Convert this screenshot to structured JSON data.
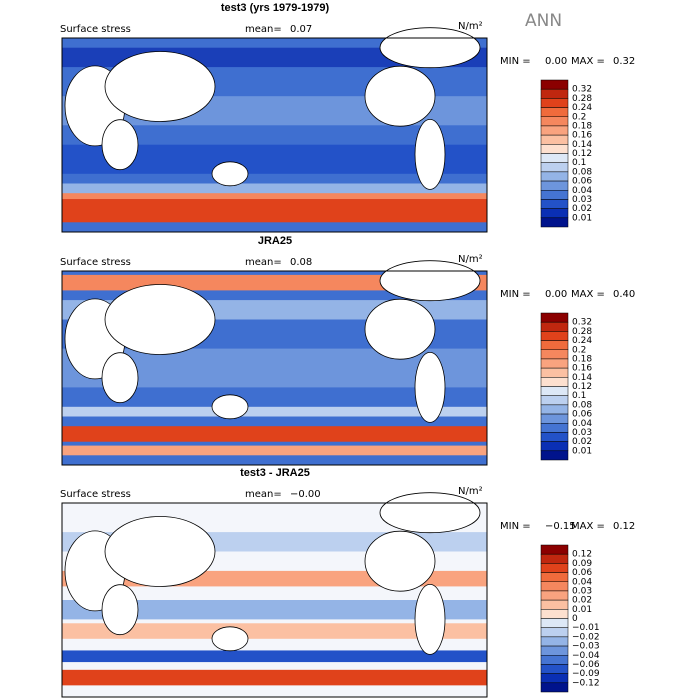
{
  "season": "ANN",
  "panels": [
    {
      "title": "test3 (yrs 1979-1979)",
      "variable": "Surface stress",
      "mean_label": "mean=",
      "mean": "0.07",
      "units": "N/m²",
      "min_label": "MIN =",
      "min": "0.00",
      "max_label": "MAX =",
      "max": "0.32",
      "colorbar": {
        "levels": [
          "0.32",
          "0.28",
          "0.24",
          "0.2",
          "0.18",
          "0.16",
          "0.14",
          "0.12",
          "0.1",
          "0.08",
          "0.06",
          "0.04",
          "0.03",
          "0.02",
          "0.01"
        ],
        "colors": [
          "#8b0000",
          "#c0270f",
          "#e0421b",
          "#f06b3c",
          "#f5875e",
          "#f9a37f",
          "#fbc0a2",
          "#fde0cf",
          "#dde8f6",
          "#bcd0ef",
          "#94b4e6",
          "#6d95dc",
          "#4574d2",
          "#2352c8",
          "#0a2fb4",
          "#00138c"
        ]
      }
    },
    {
      "title": "JRA25",
      "variable": "Surface stress",
      "mean_label": "mean=",
      "mean": "0.08",
      "units": "N/m²",
      "min_label": "MIN =",
      "min": "0.00",
      "max_label": "MAX =",
      "max": "0.40",
      "colorbar": {
        "levels": [
          "0.32",
          "0.28",
          "0.24",
          "0.2",
          "0.18",
          "0.16",
          "0.14",
          "0.12",
          "0.1",
          "0.08",
          "0.06",
          "0.04",
          "0.03",
          "0.02",
          "0.01"
        ],
        "colors": [
          "#8b0000",
          "#c0270f",
          "#e0421b",
          "#f06b3c",
          "#f5875e",
          "#f9a37f",
          "#fbc0a2",
          "#fde0cf",
          "#dde8f6",
          "#bcd0ef",
          "#94b4e6",
          "#6d95dc",
          "#4574d2",
          "#2352c8",
          "#0a2fb4",
          "#00138c"
        ]
      }
    },
    {
      "title": "test3 - JRA25",
      "variable": "Surface stress",
      "mean_label": "mean=",
      "mean": "−0.00",
      "units": "N/m²",
      "min_label": "MIN =",
      "min": "−0.15",
      "max_label": "MAX =",
      "max": "0.12",
      "colorbar": {
        "levels": [
          "0.12",
          "0.09",
          "0.06",
          "0.04",
          "0.03",
          "0.02",
          "0.01",
          "0",
          "−0.01",
          "−0.02",
          "−0.03",
          "−0.04",
          "−0.06",
          "−0.09",
          "−0.12"
        ],
        "colors": [
          "#8b0000",
          "#c0270f",
          "#e0421b",
          "#f06b3c",
          "#f5875e",
          "#f9a37f",
          "#fbc0a2",
          "#fde0cf",
          "#dde8f6",
          "#bcd0ef",
          "#94b4e6",
          "#6d95dc",
          "#4574d2",
          "#2352c8",
          "#0a2fb4",
          "#00138c"
        ]
      }
    }
  ]
}
